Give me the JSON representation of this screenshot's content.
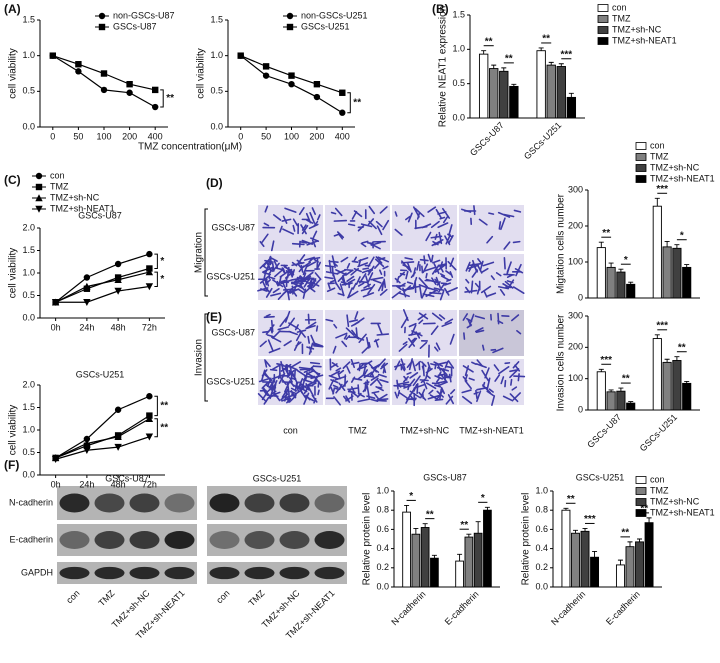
{
  "panel_labels": [
    "(A)",
    "(B)",
    "(C)",
    "(D)",
    "(E)",
    "(F)"
  ],
  "microscopy": {
    "assays": [
      {
        "name": "Migration",
        "cell_lines": [
          "GSCs-U87",
          "GSCs-U251"
        ]
      },
      {
        "name": "Invasion",
        "cell_lines": [
          "GSCs-U87",
          "GSCs-U251"
        ]
      }
    ],
    "groups": [
      "con",
      "TMZ",
      "TMZ+sh-NC",
      "TMZ+sh-NEAT1"
    ]
  },
  "western_blot": {
    "proteins": [
      "N-cadherin",
      "E-cadherin",
      "GAPDH"
    ],
    "blots": [
      {
        "title": "GSCs-U87",
        "lanes": [
          "con",
          "TMZ",
          "TMZ+sh-NC",
          "TMZ+sh-NEAT1"
        ]
      },
      {
        "title": "GSCs-U251",
        "lanes": [
          "con",
          "TMZ",
          "TMZ+sh-NC",
          "TMZ+sh-NEAT1"
        ]
      }
    ]
  },
  "chart_data": [
    {
      "type": "line",
      "xlabel": "TMZ concentration(μM)",
      "ylabel": "cell viability",
      "categories": [
        "0",
        "50",
        "100",
        "200",
        "400"
      ],
      "series": [
        {
          "name": "non-GSCs-U87",
          "color": "#000000",
          "marker": "circle",
          "values": [
            1.0,
            0.78,
            0.52,
            0.48,
            0.28
          ]
        },
        {
          "name": "GSCs-U87",
          "color": "#000000",
          "marker": "square",
          "values": [
            1.0,
            0.88,
            0.75,
            0.6,
            0.52
          ]
        }
      ],
      "ylim": [
        0,
        1.5
      ],
      "yticks": [
        {
          "value": 0,
          "label": "0.0"
        },
        0.5,
        {
          "value": 1,
          "label": "1.0"
        },
        1.5
      ],
      "annotations": [
        "**"
      ],
      "legend": true
    },
    {
      "type": "line",
      "ylabel": "cell viability",
      "categories": [
        "0",
        "50",
        "100",
        "200",
        "400"
      ],
      "series": [
        {
          "name": "non-GSCs-U251",
          "color": "#000000",
          "marker": "circle",
          "values": [
            1.0,
            0.72,
            0.6,
            0.42,
            0.2
          ]
        },
        {
          "name": "GSCs-U251",
          "color": "#000000",
          "marker": "square",
          "values": [
            1.0,
            0.85,
            0.72,
            0.6,
            0.48
          ]
        }
      ],
      "ylim": [
        0,
        1.5
      ],
      "yticks": [
        {
          "value": 0,
          "label": "0.0"
        },
        0.5,
        {
          "value": 1,
          "label": "1.0"
        },
        1.5
      ],
      "annotations": [
        "**"
      ],
      "legend": true
    },
    {
      "type": "bar",
      "ylabel": "Relative NEAT1 expression",
      "categories": [
        "GSCs-U87",
        "GSCs-U251"
      ],
      "series": [
        {
          "name": "con",
          "color": "#ffffff",
          "values": [
            0.93,
            0.98
          ],
          "errors": [
            0.05,
            0.04
          ]
        },
        {
          "name": "TMZ",
          "color": "#808080",
          "values": [
            0.72,
            0.77
          ],
          "errors": [
            0.05,
            0.04
          ]
        },
        {
          "name": "TMZ+sh-NC",
          "color": "#404040",
          "values": [
            0.68,
            0.75
          ],
          "errors": [
            0.05,
            0.04
          ]
        },
        {
          "name": "TMZ+sh-NEAT1",
          "color": "#000000",
          "values": [
            0.46,
            0.3
          ],
          "errors": [
            0.03,
            0.06
          ]
        }
      ],
      "ylim": [
        0,
        1.5
      ],
      "yticks": [
        {
          "value": 0,
          "label": "0.0"
        },
        0.5,
        {
          "value": 1,
          "label": "1.0"
        },
        1.5
      ],
      "annotations": [
        "**",
        "**",
        "**",
        "***"
      ],
      "legend": true
    },
    {
      "type": "line",
      "title": "GSCs-U87",
      "ylabel": "cell viability",
      "categories": [
        "0h",
        "24h",
        "48h",
        "72h"
      ],
      "series": [
        {
          "name": "con",
          "color": "#000000",
          "marker": "circle",
          "values": [
            0.35,
            0.9,
            1.2,
            1.42
          ]
        },
        {
          "name": "TMZ",
          "color": "#000000",
          "marker": "square",
          "values": [
            0.35,
            0.65,
            0.9,
            1.1
          ]
        },
        {
          "name": "TMZ+sh-NC",
          "color": "#000000",
          "marker": "triangle-up",
          "values": [
            0.35,
            0.7,
            0.85,
            1.02
          ]
        },
        {
          "name": "TMZ+sh-NEAT1",
          "color": "#000000",
          "marker": "triangle-down",
          "values": [
            0.35,
            0.35,
            0.6,
            0.7
          ]
        }
      ],
      "ylim": [
        0,
        2
      ],
      "yticks": [
        {
          "value": 0,
          "label": "0.0"
        },
        0.5,
        {
          "value": 1,
          "label": "1.0"
        },
        1.5,
        {
          "value": 2,
          "label": "2.0"
        }
      ],
      "annotations": [
        "*",
        "*"
      ],
      "legend": true
    },
    {
      "type": "line",
      "title": "GSCs-U251",
      "ylabel": "cell viability",
      "categories": [
        "0h",
        "24h",
        "48h",
        "72h"
      ],
      "series": [
        {
          "name": "con",
          "color": "#000000",
          "marker": "circle",
          "values": [
            0.38,
            0.8,
            1.45,
            1.75
          ]
        },
        {
          "name": "TMZ",
          "color": "#000000",
          "marker": "square",
          "values": [
            0.38,
            0.65,
            0.88,
            1.32
          ]
        },
        {
          "name": "TMZ+sh-NC",
          "color": "#000000",
          "marker": "triangle-up",
          "values": [
            0.38,
            0.7,
            0.85,
            1.25
          ]
        },
        {
          "name": "TMZ+sh-NEAT1",
          "color": "#000000",
          "marker": "triangle-down",
          "values": [
            0.35,
            0.55,
            0.62,
            0.85
          ]
        }
      ],
      "ylim": [
        0,
        2
      ],
      "yticks": [
        {
          "value": 0,
          "label": "0.0"
        },
        0.5,
        {
          "value": 1,
          "label": "1.0"
        },
        1.5,
        {
          "value": 2,
          "label": "2.0"
        }
      ],
      "annotations": [
        "**",
        "**"
      ],
      "legend": false
    },
    {
      "type": "bar",
      "ylabel": "Migtation cells number",
      "categories": [
        null,
        null
      ],
      "series": [
        {
          "name": "con",
          "color": "#ffffff",
          "values": [
            140,
            255
          ],
          "errors": [
            15,
            22
          ]
        },
        {
          "name": "TMZ",
          "color": "#808080",
          "values": [
            85,
            142
          ],
          "errors": [
            12,
            15
          ]
        },
        {
          "name": "TMZ+sh-NC",
          "color": "#404040",
          "values": [
            72,
            138
          ],
          "errors": [
            8,
            10
          ]
        },
        {
          "name": "TMZ+sh-NEAT1",
          "color": "#000000",
          "values": [
            38,
            85
          ],
          "errors": [
            6,
            8
          ]
        }
      ],
      "ylim": [
        0,
        300
      ],
      "yticks": [
        0,
        100,
        200,
        300
      ],
      "annotations": [
        "**",
        "*",
        "***",
        "*"
      ],
      "legend": true
    },
    {
      "type": "bar",
      "ylabel": "Invasion cells number",
      "categories": [
        "GSCs-U87",
        "GSCs-U251"
      ],
      "series": [
        {
          "name": "con",
          "color": "#ffffff",
          "values": [
            122,
            228
          ],
          "errors": [
            8,
            12
          ]
        },
        {
          "name": "TMZ",
          "color": "#808080",
          "values": [
            58,
            152
          ],
          "errors": [
            6,
            10
          ]
        },
        {
          "name": "TMZ+sh-NC",
          "color": "#404040",
          "values": [
            60,
            158
          ],
          "errors": [
            10,
            12
          ]
        },
        {
          "name": "TMZ+sh-NEAT1",
          "color": "#000000",
          "values": [
            22,
            85
          ],
          "errors": [
            5,
            6
          ]
        }
      ],
      "ylim": [
        0,
        300
      ],
      "yticks": [
        0,
        100,
        200,
        300
      ],
      "annotations": [
        "***",
        "**",
        "***",
        "**"
      ],
      "legend": false
    },
    {
      "type": "bar",
      "title": "GSCs-U87",
      "ylabel": "Relative protein level",
      "categories": [
        "N-cadherin",
        "E-cadherin"
      ],
      "series": [
        {
          "name": "con",
          "color": "#ffffff",
          "values": [
            0.78,
            0.27
          ],
          "errors": [
            0.07,
            0.07
          ]
        },
        {
          "name": "TMZ",
          "color": "#808080",
          "values": [
            0.55,
            0.52
          ],
          "errors": [
            0.06,
            0.03
          ]
        },
        {
          "name": "TMZ+sh-NC",
          "color": "#404040",
          "values": [
            0.62,
            0.56
          ],
          "errors": [
            0.04,
            0.12
          ]
        },
        {
          "name": "TMZ+sh-NEAT1",
          "color": "#000000",
          "values": [
            0.3,
            0.8
          ],
          "errors": [
            0.03,
            0.03
          ]
        }
      ],
      "ylim": [
        0,
        1
      ],
      "yticks": [
        {
          "value": 0,
          "label": "0.0"
        },
        0.2,
        0.4,
        0.6,
        0.8,
        {
          "value": 1,
          "label": "1.0"
        }
      ],
      "annotations": [
        "*",
        "**",
        "**",
        "*"
      ],
      "legend": false
    },
    {
      "type": "bar",
      "title": "GSCs-U251",
      "ylabel": "Relative protein level",
      "categories": [
        "N-cadherin",
        "E-cadherin"
      ],
      "series": [
        {
          "name": "con",
          "color": "#ffffff",
          "values": [
            0.8,
            0.23
          ],
          "errors": [
            0.02,
            0.05
          ]
        },
        {
          "name": "TMZ",
          "color": "#808080",
          "values": [
            0.56,
            0.42
          ],
          "errors": [
            0.03,
            0.05
          ]
        },
        {
          "name": "TMZ+sh-NC",
          "color": "#404040",
          "values": [
            0.58,
            0.47
          ],
          "errors": [
            0.03,
            0.03
          ]
        },
        {
          "name": "TMZ+sh-NEAT1",
          "color": "#000000",
          "values": [
            0.31,
            0.67
          ],
          "errors": [
            0.06,
            0.05
          ]
        }
      ],
      "ylim": [
        0,
        1
      ],
      "yticks": [
        {
          "value": 0,
          "label": "0.0"
        },
        0.2,
        0.4,
        0.6,
        0.8,
        {
          "value": 1,
          "label": "1.0"
        }
      ],
      "annotations": [
        "**",
        "***",
        "**",
        "**"
      ],
      "legend": true
    }
  ]
}
